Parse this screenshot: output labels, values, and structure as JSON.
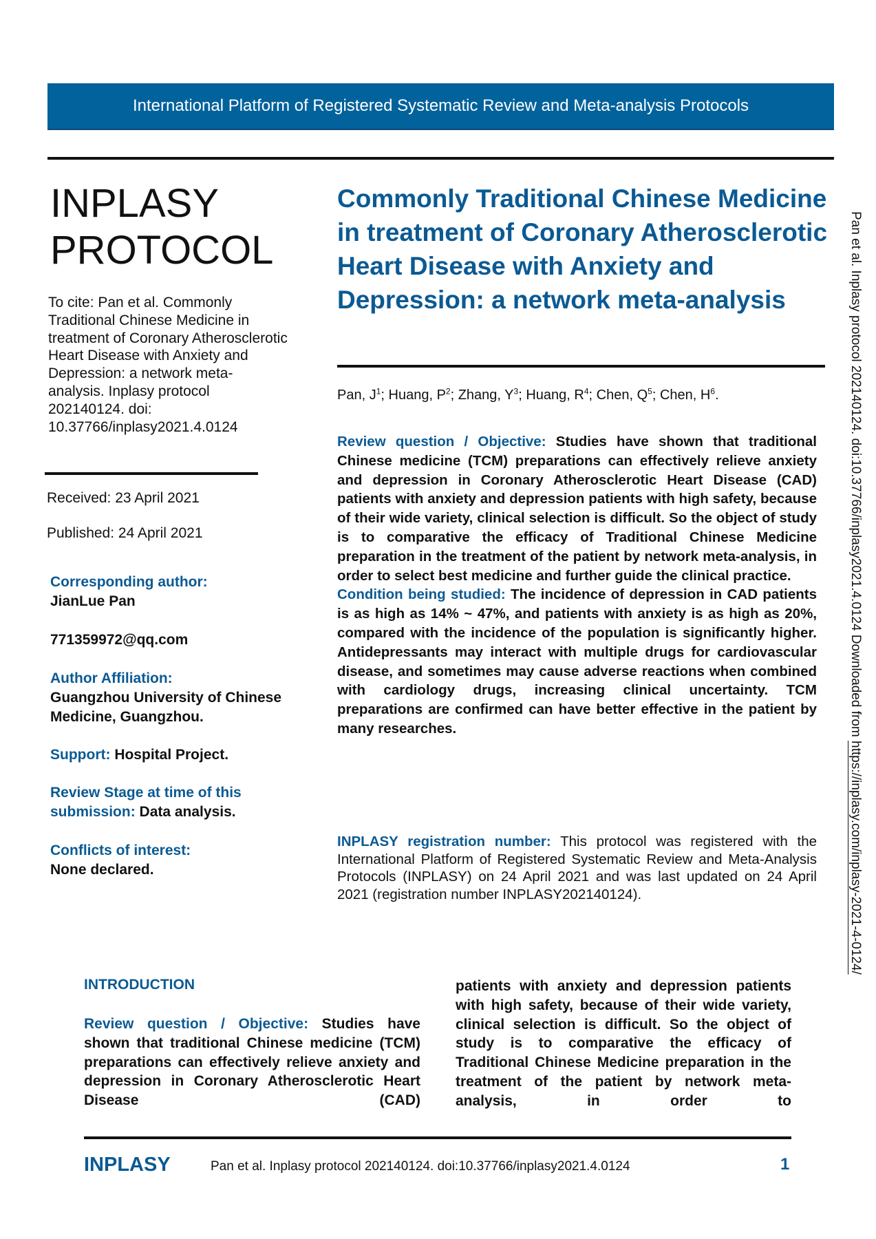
{
  "banner": "International Platform of Registered Systematic Review and Meta-analysis Protocols",
  "brand": {
    "line1": "INPLASY",
    "line2": "PROTOCOL"
  },
  "cite": "To cite: Pan et al. Commonly Traditional Chinese Medicine in treatment of Coronary Atherosclerotic Heart Disease with Anxiety and Depression: a network meta-analysis. Inplasy protocol 202140124. doi: 10.37766/inplasy2021.4.0124",
  "received": "Received: 23 April 2021",
  "published": "Published: 24 April 2021",
  "sidebar": {
    "corr_label": "Corresponding author:",
    "corr_name": "JianLue Pan",
    "email": "771359972@qq.com",
    "aff_label": "Author Affiliation:",
    "aff_value": "Guangzhou University of Chinese Medicine, Guangzhou.",
    "support_label": "Support:",
    "support_value": " Hospital Project.",
    "stage_label": "Review Stage at time of this submission:",
    "stage_value": " Data analysis.",
    "conflicts_label": "Conflicts of interest:",
    "conflicts_value": "None declared."
  },
  "title": "Commonly Traditional Chinese Medicine in treatment of Coronary Atherosclerotic Heart Disease with Anxiety and Depression: a network meta-analysis",
  "authors": [
    {
      "name": "Pan, J",
      "sup": "1"
    },
    {
      "name": "Huang, P",
      "sup": "2"
    },
    {
      "name": "Zhang, Y",
      "sup": "3"
    },
    {
      "name": "Huang, R",
      "sup": "4"
    },
    {
      "name": "Chen, Q",
      "sup": "5"
    },
    {
      "name": "Chen, H",
      "sup": "6"
    }
  ],
  "abstract": {
    "rq_label": "Review question / Objective:",
    "rq_text": " Studies have shown that traditional Chinese medicine (TCM) preparations can effectively relieve anxiety and depression in Coronary Atherosclerotic Heart Disease (CAD) patients with anxiety and depression patients with high safety, because of their wide variety, clinical selection is difficult. So the object of study is to comparative the efficacy of Traditional Chinese Medicine preparation in the treatment of the patient by network meta-analysis, in order to select best medicine and further guide the clinical practice.",
    "cond_label": "Condition being studied:",
    "cond_text": " The incidence of depression in CAD patients is as high as 14% ~ 47%, and patients with anxiety is as high as 20%, compared with the incidence of the population is significantly higher. Antidepressants may interact with multiple drugs for cardiovascular disease, and sometimes may cause adverse reactions when combined with cardiology drugs, increasing clinical uncertainty. TCM preparations are confirmed can have better effective in the patient by many researches."
  },
  "registration": {
    "label": "INPLASY registration number:",
    "text": " This protocol was registered with the International Platform of Registered Systematic Review and Meta-Analysis Protocols (INPLASY) on 24 April 2021 and was last updated on 24 April 2021 (registration number INPLASY202140124)."
  },
  "intro": {
    "heading": "INTRODUCTION",
    "rq_label": "Review question / Objective:",
    "left_text": " Studies have shown that traditional Chinese medicine (TCM) preparations can effectively relieve anxiety and depression in Coronary Atherosclerotic Heart Disease (CAD)",
    "right_text": "patients with anxiety and depression patients with high safety, because of their wide variety, clinical selection is difficult. So the object of study is to comparative the efficacy of Traditional Chinese Medicine preparation in the treatment of the patient by network meta-analysis, in order to"
  },
  "footer": {
    "brand": "INPLASY",
    "cite": "Pan et al. Inplasy protocol 202140124. doi:10.37766/inplasy2021.4.0124",
    "page": "1"
  },
  "side_note": {
    "text": "Pan et al. Inplasy protocol 202140124. doi:10.37766/inplasy2021.4.0124 Downloaded from ",
    "url": "https://inplasy.com/inplasy-2021-4-0124/"
  },
  "colors": {
    "accent": "#0b5a93",
    "banner": "#01629c"
  }
}
